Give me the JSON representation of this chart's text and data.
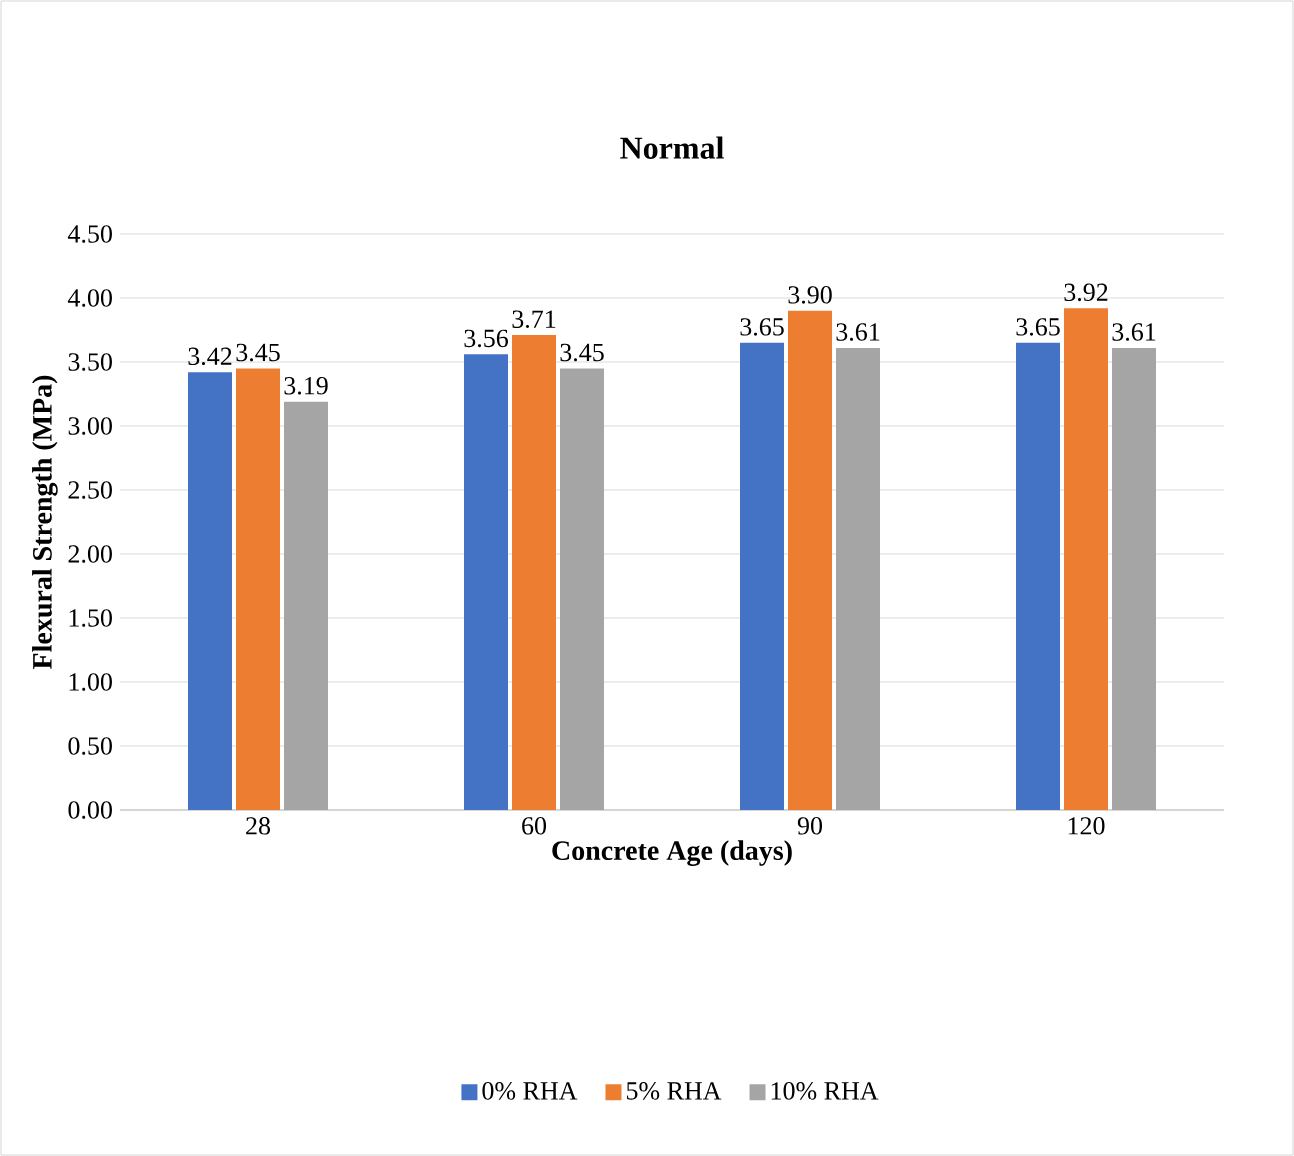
{
  "chart_data": {
    "type": "bar",
    "title": "Normal",
    "xlabel": "Concrete Age (days)",
    "ylabel": "Flexural Strength (MPa)",
    "categories": [
      "28",
      "60",
      "90",
      "120"
    ],
    "series": [
      {
        "name": "0% RHA",
        "color": "#4472c4",
        "values": [
          3.42,
          3.56,
          3.65,
          3.65
        ],
        "value_labels": [
          "3.42",
          "3.56",
          "3.65",
          "3.65"
        ]
      },
      {
        "name": "5% RHA",
        "color": "#ed7d31",
        "values": [
          3.45,
          3.71,
          3.9,
          3.92
        ],
        "value_labels": [
          "3.45",
          "3.71",
          "3.90",
          "3.92"
        ]
      },
      {
        "name": "10% RHA",
        "color": "#a5a5a5",
        "values": [
          3.19,
          3.45,
          3.61,
          3.61
        ],
        "value_labels": [
          "3.19",
          "3.45",
          "3.61",
          "3.61"
        ]
      }
    ],
    "ylim": [
      0,
      4.5
    ],
    "yticks": [
      {
        "value": 0,
        "label": "0.00"
      },
      {
        "value": 0.5,
        "label": "0.50"
      },
      {
        "value": 1,
        "label": "1.00"
      },
      {
        "value": 1.5,
        "label": "1.50"
      },
      {
        "value": 2,
        "label": "2.00"
      },
      {
        "value": 2.5,
        "label": "2.50"
      },
      {
        "value": 3,
        "label": "3.00"
      },
      {
        "value": 3.5,
        "label": "3.50"
      },
      {
        "value": 4,
        "label": "4.00"
      },
      {
        "value": 4.5,
        "label": "4.50"
      }
    ],
    "grid": "y",
    "legend": "bottom"
  }
}
